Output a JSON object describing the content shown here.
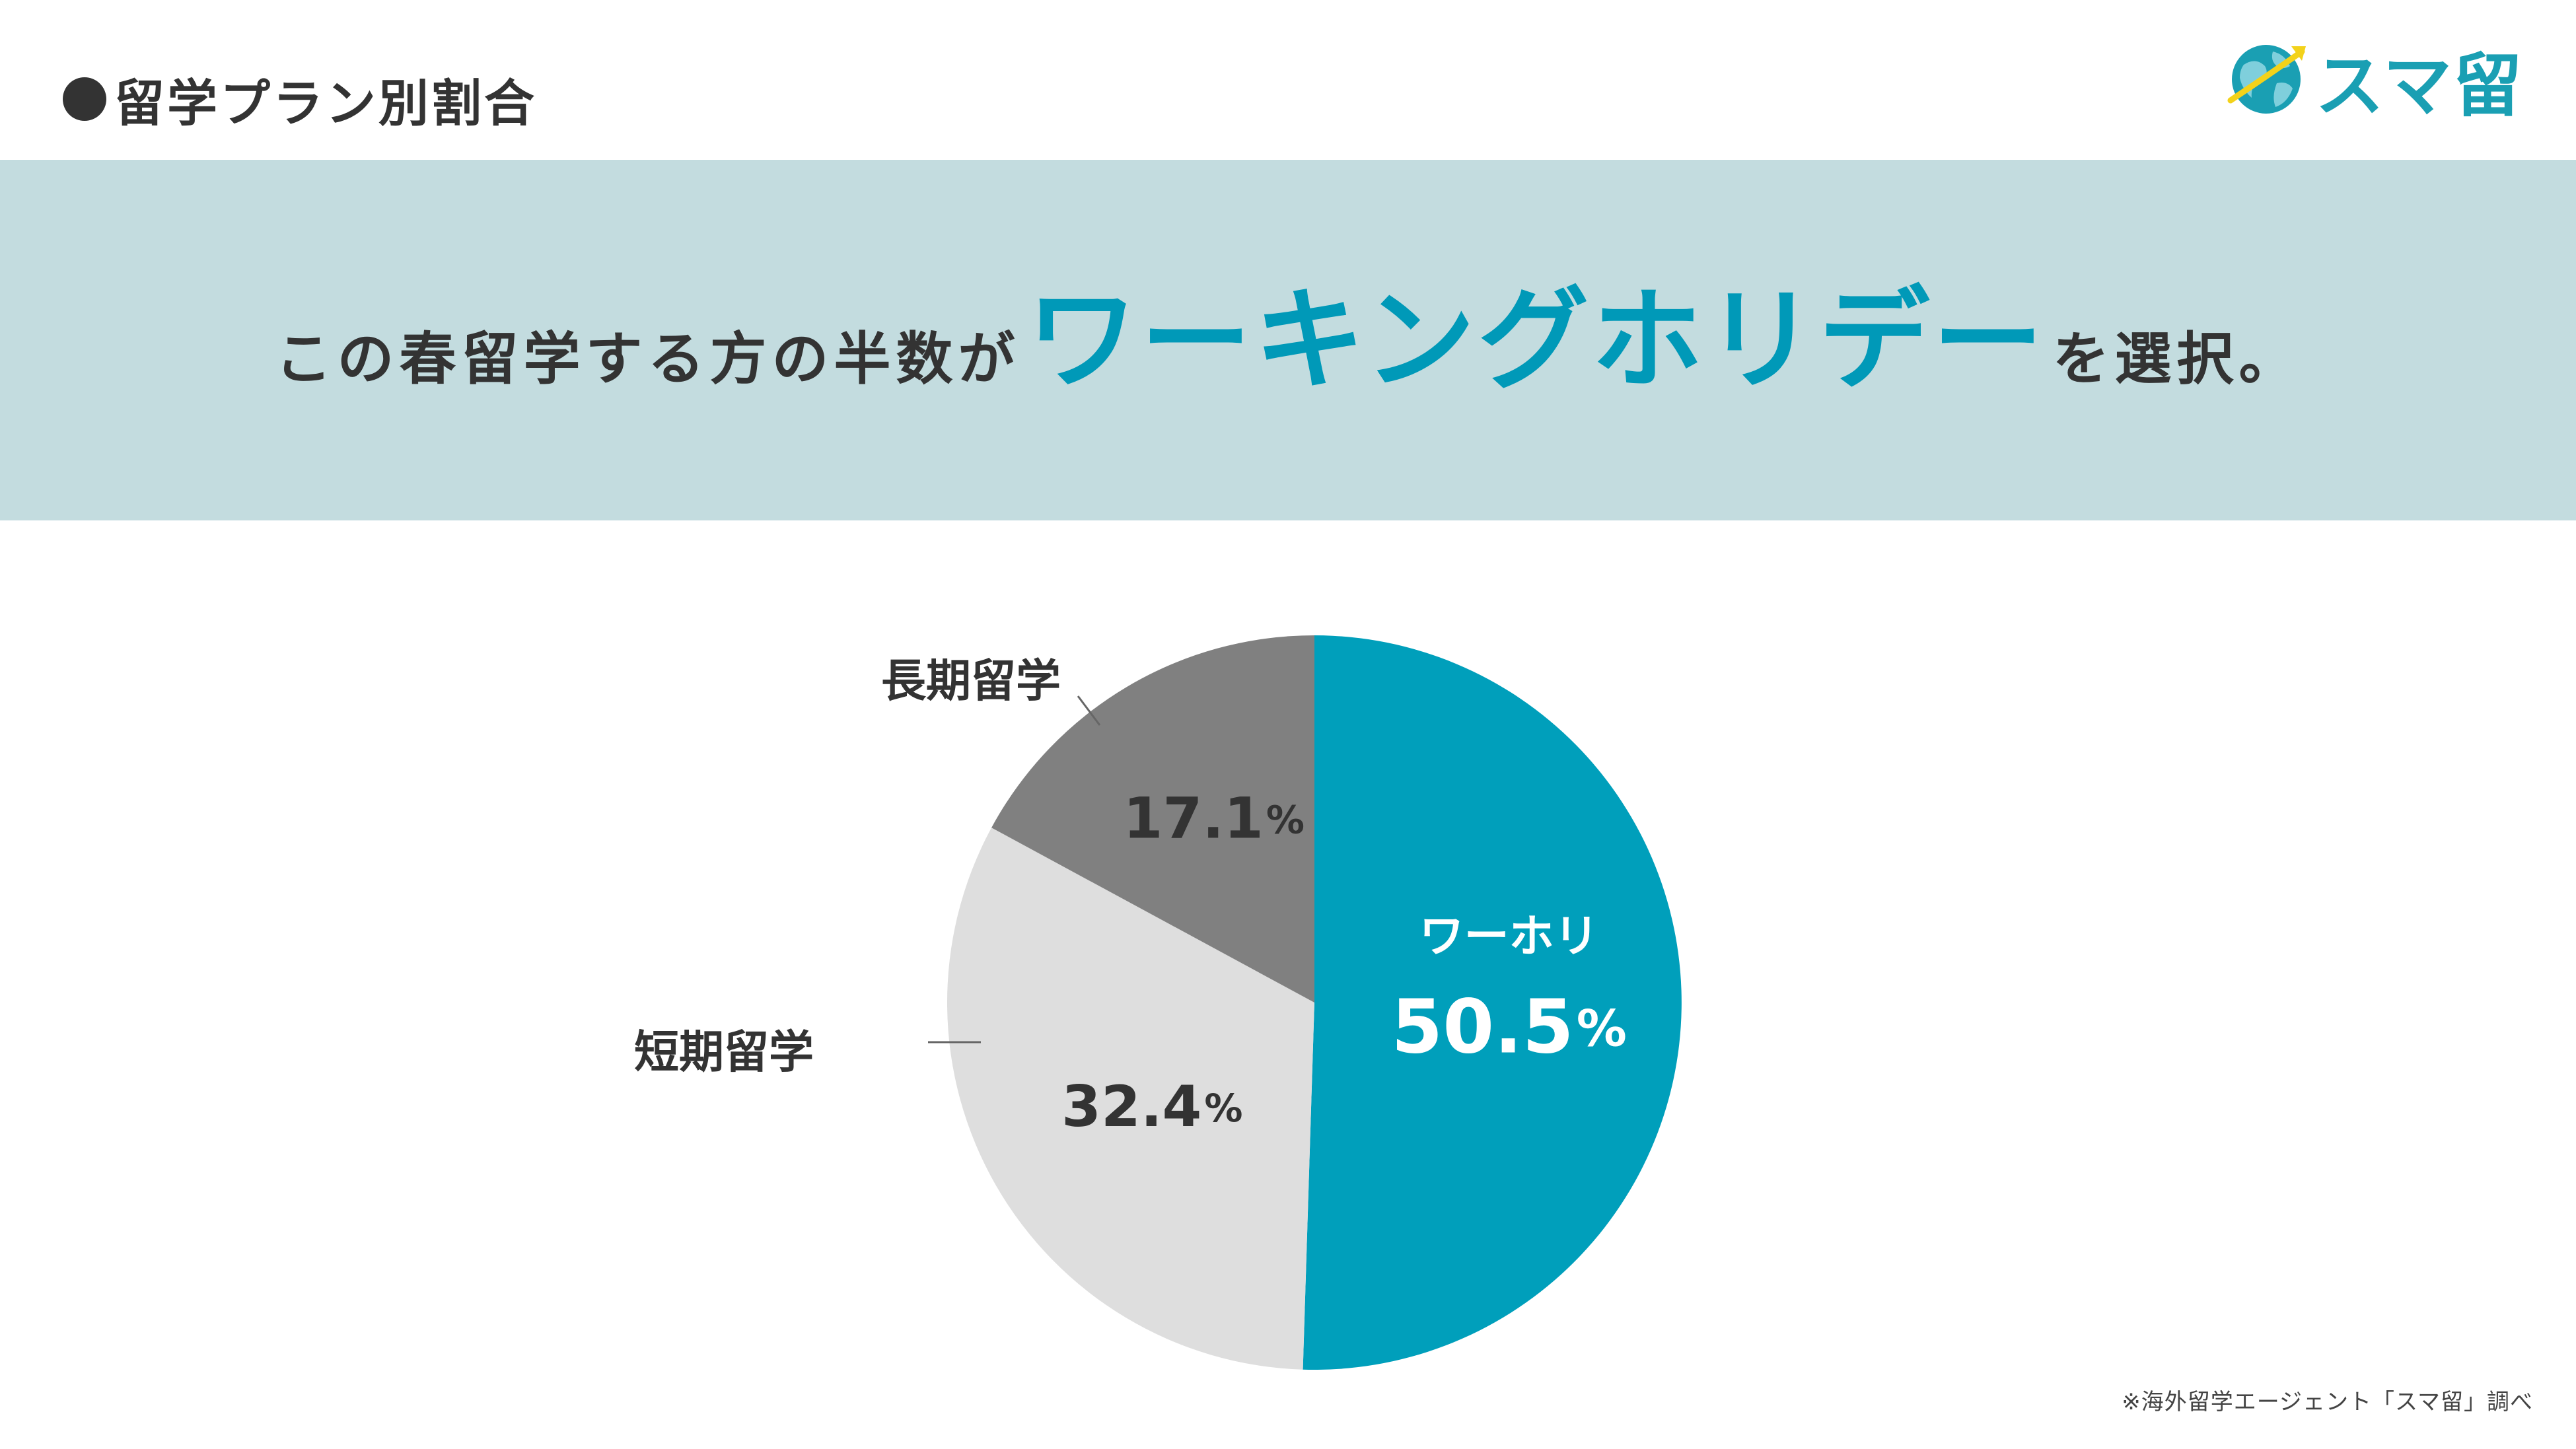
{
  "header": {
    "section_title": "留学プラン別割合",
    "logo_text": "スマ留",
    "logo_icon": "globe-icon"
  },
  "banner": {
    "text_before": "この春留学する方の半数が",
    "highlight": "ワーキングホリデー",
    "text_after": "を選択。"
  },
  "colors": {
    "accent": "#009fbb",
    "banner_bg": "#c3dcdf",
    "slice_short": "#dedede",
    "slice_long": "#808080",
    "text": "#333333"
  },
  "chart_data": {
    "type": "pie",
    "title": "",
    "start": "12 o'clock",
    "direction": "clockwise",
    "slices": [
      {
        "label": "ワーホリ",
        "value": 50.5,
        "display": "50.5",
        "unit": "%",
        "color": "#009fbb"
      },
      {
        "label": "短期留学",
        "value": 32.4,
        "display": "32.4",
        "unit": "%",
        "color": "#dedede"
      },
      {
        "label": "長期留学",
        "value": 17.1,
        "display": "17.1",
        "unit": "%",
        "color": "#808080"
      }
    ]
  },
  "footnote": "※海外留学エージェント「スマ留」調べ"
}
